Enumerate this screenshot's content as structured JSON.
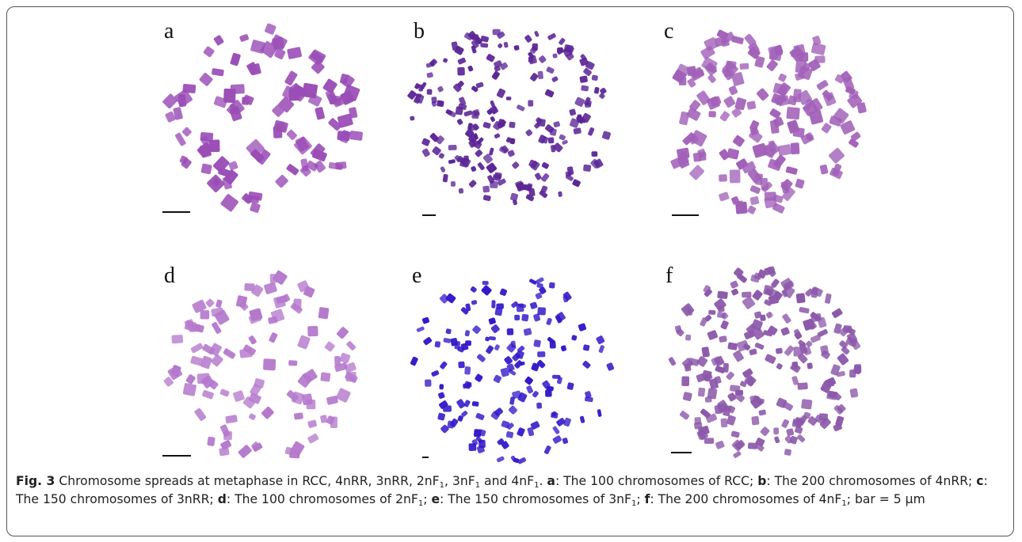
{
  "figure": {
    "panels": [
      {
        "label": "a"
      },
      {
        "label": "b"
      },
      {
        "label": "c"
      },
      {
        "label": "d"
      },
      {
        "label": "e"
      },
      {
        "label": "f"
      }
    ],
    "caption": [
      {
        "text": "Fig. 3",
        "bold": true
      },
      {
        "text": " Chromosome spreads at metaphase in RCC, 4nRR, 3nRR, 2nF"
      },
      {
        "text": "1",
        "sub": true
      },
      {
        "text": ", 3nF"
      },
      {
        "text": "1",
        "sub": true
      },
      {
        "text": " and  4nF"
      },
      {
        "text": "1",
        "sub": true
      },
      {
        "text": ". "
      },
      {
        "text": "a",
        "bold": true
      },
      {
        "text": ": The 100 chromosomes of RCC; "
      },
      {
        "text": "b",
        "bold": true
      },
      {
        "text": ": The 200 chromosomes of 4nRR; "
      },
      {
        "text": "c",
        "bold": true
      },
      {
        "text": ": The 150 chromosomes of 3nRR; "
      },
      {
        "text": "d",
        "bold": true
      },
      {
        "text": ": The 100 chromosomes of 2nF"
      },
      {
        "text": "1",
        "sub": true
      },
      {
        "text": "; "
      },
      {
        "text": "e",
        "bold": true
      },
      {
        "text": ": The 150 chromosomes of 3nF"
      },
      {
        "text": "1",
        "sub": true
      },
      {
        "text": "; "
      },
      {
        "text": "f",
        "bold": true
      },
      {
        "text": ": The 200 chromosomes of 4nF"
      },
      {
        "text": "1",
        "sub": true
      },
      {
        "text": "; bar = 5 μm"
      }
    ]
  }
}
